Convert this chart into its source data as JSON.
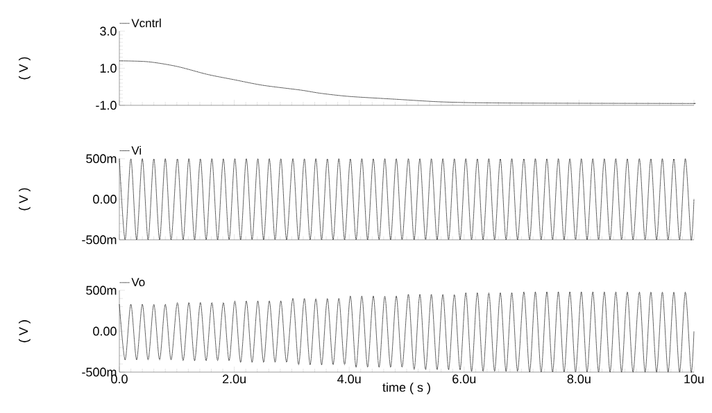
{
  "chart_data": [
    {
      "type": "line",
      "ylabel": "( V )",
      "legend": "top left",
      "tick_labels": "y",
      "line_style": "dotted",
      "xlim": [
        0,
        10
      ],
      "xticks": [
        {
          "value": 0,
          "label": null
        },
        {
          "value": 2,
          "label": null
        },
        {
          "value": 4,
          "label": null
        },
        {
          "value": 6,
          "label": null
        },
        {
          "value": 8,
          "label": null
        },
        {
          "value": 10,
          "label": null
        }
      ],
      "ylim": [
        -1,
        3
      ],
      "yticks": [
        {
          "value": -1,
          "label": "-1.0"
        },
        {
          "value": 1,
          "label": "1.0"
        },
        {
          "value": 3,
          "label": "3.0"
        }
      ],
      "x": [
        0,
        0.5,
        1.0,
        1.53,
        2.0,
        2.5,
        3.16,
        3.5,
        4.0,
        4.8,
        5.5,
        6.0,
        6.49,
        7.0,
        8.17,
        9.86,
        10.0
      ],
      "series": [
        {
          "name": "Vcntrl",
          "color": "#000000",
          "values": [
            1.4,
            1.35,
            1.1,
            0.67,
            0.38,
            0.08,
            -0.18,
            -0.35,
            -0.52,
            -0.67,
            -0.8,
            -0.85,
            -0.87,
            -0.88,
            -0.89,
            -0.9,
            -0.9
          ]
        }
      ]
    },
    {
      "type": "line",
      "ylabel": "( V )",
      "legend": "top left",
      "tick_labels": "y",
      "line_style": "dotted",
      "xlim": [
        0,
        10
      ],
      "xticks": [
        {
          "value": 0,
          "label": null
        },
        {
          "value": 2,
          "label": null
        },
        {
          "value": 4,
          "label": null
        },
        {
          "value": 6,
          "label": null
        },
        {
          "value": 8,
          "label": null
        },
        {
          "value": 10,
          "label": null
        }
      ],
      "ylim": [
        -500,
        500
      ],
      "yticks": [
        {
          "value": -500,
          "label": "-500m"
        },
        {
          "value": 0,
          "label": "0.00"
        },
        {
          "value": 500,
          "label": "500m"
        }
      ],
      "x": [
        0,
        0.1,
        0.2,
        0.3,
        0.4,
        0.5,
        0.6,
        0.7,
        0.8,
        0.9,
        1.01,
        1.11,
        1.21,
        1.31,
        1.41,
        1.51,
        1.61,
        1.71,
        1.81,
        1.91,
        2.01,
        2.11,
        2.21,
        2.31,
        2.41,
        2.51,
        2.61,
        2.71,
        2.81,
        2.91,
        3.02,
        3.12,
        3.22,
        3.32,
        3.42,
        3.52,
        3.62,
        3.72,
        3.82,
        3.92,
        4.02,
        4.12,
        4.22,
        4.32,
        4.42,
        4.52,
        4.62,
        4.72,
        4.82,
        4.92,
        5.03,
        5.13,
        5.23,
        5.33,
        5.43,
        5.53,
        5.63,
        5.73,
        5.83,
        5.93,
        6.03,
        6.13,
        6.23,
        6.33,
        6.43,
        6.53,
        6.63,
        6.73,
        6.83,
        6.93,
        7.04,
        7.14,
        7.24,
        7.34,
        7.44,
        7.54,
        7.64,
        7.74,
        7.84,
        7.94,
        8.04,
        8.14,
        8.24,
        8.34,
        8.44,
        8.54,
        8.64,
        8.74,
        8.84,
        8.94,
        9.05,
        9.15,
        9.25,
        9.35,
        9.45,
        9.55,
        9.65,
        9.75,
        9.85,
        9.95,
        10.0
      ],
      "series": [
        {
          "name": "Vi",
          "color": "#000000",
          "values": [
            500,
            -500,
            500,
            -500,
            500,
            -500,
            500,
            -500,
            500,
            -500,
            500,
            -500,
            500,
            -500,
            500,
            -500,
            500,
            -500,
            500,
            -500,
            500,
            -500,
            500,
            -500,
            500,
            -500,
            500,
            -500,
            500,
            -500,
            500,
            -500,
            500,
            -500,
            500,
            -500,
            500,
            -500,
            500,
            -500,
            500,
            -500,
            500,
            -500,
            500,
            -500,
            500,
            -500,
            500,
            -500,
            500,
            -500,
            500,
            -500,
            500,
            -500,
            500,
            -500,
            500,
            -500,
            500,
            -500,
            500,
            -500,
            500,
            -500,
            500,
            -500,
            500,
            -500,
            500,
            -500,
            500,
            -500,
            500,
            -500,
            500,
            -500,
            500,
            -500,
            500,
            -500,
            500,
            -500,
            500,
            -500,
            500,
            -500,
            500,
            -500,
            500,
            -500,
            500,
            -500,
            500,
            -500,
            500,
            -500,
            500,
            -500,
            0
          ]
        }
      ]
    },
    {
      "type": "line",
      "ylabel": "( V )",
      "xlabel": "time ( s )",
      "legend": "top left",
      "line_style": "dotted",
      "xlim": [
        0,
        10
      ],
      "xticks": [
        {
          "value": 0,
          "label": "0.0"
        },
        {
          "value": 2,
          "label": "2.0u"
        },
        {
          "value": 4,
          "label": "4.0u"
        },
        {
          "value": 6,
          "label": "6.0u"
        },
        {
          "value": 8,
          "label": "8.0u"
        },
        {
          "value": 10,
          "label": "10u"
        }
      ],
      "ylim": [
        -500,
        500
      ],
      "yticks": [
        {
          "value": -500,
          "label": "-500m"
        },
        {
          "value": 0,
          "label": "0.00"
        },
        {
          "value": 500,
          "label": "500m"
        }
      ],
      "x": [
        0,
        0.1,
        0.2,
        0.3,
        0.4,
        0.5,
        0.6,
        0.7,
        0.8,
        0.9,
        1.01,
        1.11,
        1.21,
        1.31,
        1.41,
        1.51,
        1.61,
        1.71,
        1.81,
        1.91,
        2.01,
        2.11,
        2.21,
        2.31,
        2.41,
        2.51,
        2.61,
        2.71,
        2.81,
        2.91,
        3.02,
        3.12,
        3.22,
        3.32,
        3.42,
        3.52,
        3.62,
        3.72,
        3.82,
        3.92,
        4.02,
        4.12,
        4.22,
        4.32,
        4.42,
        4.52,
        4.62,
        4.72,
        4.82,
        4.92,
        5.03,
        5.13,
        5.23,
        5.33,
        5.43,
        5.53,
        5.63,
        5.73,
        5.83,
        5.93,
        6.03,
        6.13,
        6.23,
        6.33,
        6.43,
        6.53,
        6.63,
        6.73,
        6.83,
        6.93,
        7.04,
        7.14,
        7.24,
        7.34,
        7.44,
        7.54,
        7.64,
        7.74,
        7.84,
        7.94,
        8.04,
        8.14,
        8.24,
        8.34,
        8.44,
        8.54,
        8.64,
        8.74,
        8.84,
        8.94,
        9.05,
        9.15,
        9.25,
        9.35,
        9.45,
        9.55,
        9.65,
        9.75,
        9.85,
        9.95,
        10.0
      ],
      "series": [
        {
          "name": "Vo",
          "color": "#000000",
          "values": [
            330,
            -350,
            330,
            -350,
            330,
            -350,
            330,
            -350,
            330,
            -350,
            350,
            -360,
            350,
            -360,
            350,
            -360,
            350,
            -360,
            350,
            -360,
            370,
            -380,
            370,
            -380,
            370,
            -380,
            370,
            -380,
            370,
            -380,
            400,
            -410,
            400,
            -410,
            400,
            -410,
            400,
            -410,
            400,
            -410,
            430,
            -440,
            430,
            -440,
            430,
            -440,
            430,
            -440,
            430,
            -440,
            450,
            -470,
            450,
            -470,
            450,
            -470,
            450,
            -470,
            450,
            -470,
            470,
            -490,
            470,
            -490,
            470,
            -490,
            470,
            -490,
            470,
            -490,
            480,
            -500,
            480,
            -500,
            480,
            -500,
            480,
            -500,
            480,
            -500,
            480,
            -500,
            480,
            -500,
            480,
            -500,
            480,
            -500,
            480,
            -500,
            480,
            -500,
            480,
            -500,
            480,
            -500,
            480,
            -500,
            480,
            -500,
            0
          ]
        }
      ]
    }
  ]
}
